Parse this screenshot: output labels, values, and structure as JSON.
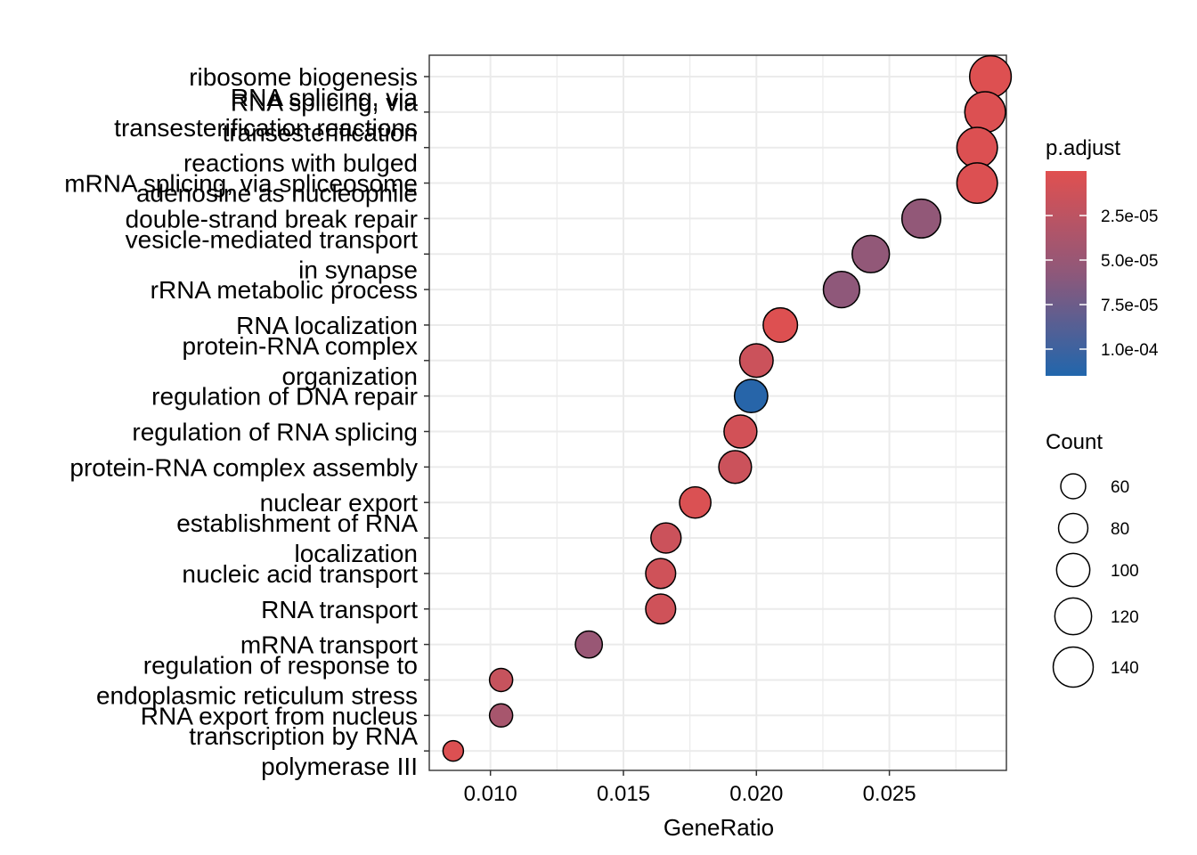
{
  "chart_data": {
    "type": "scatter",
    "xlabel": "GeneRatio",
    "ylabel": "",
    "xlim": [
      0.0077,
      0.0294
    ],
    "xticks": [
      0.01,
      0.015,
      0.02,
      0.025
    ],
    "xtick_labels": [
      "0.010",
      "0.015",
      "0.020",
      "0.025"
    ],
    "grid": true,
    "terms": [
      {
        "label": [
          "ribosome biogenesis"
        ],
        "gene_ratio": 0.0288,
        "count": 150,
        "p_adjust": 2e-06
      },
      {
        "label": [
          "RNA splicing, via",
          "transesterification reactions"
        ],
        "gene_ratio": 0.0286,
        "count": 144,
        "p_adjust": 3e-06
      },
      {
        "label": [
          "RNA splicing, via",
          "transesterification",
          "reactions with bulged",
          "adenosine as nucleophile"
        ],
        "gene_ratio": 0.0283,
        "count": 143,
        "p_adjust": 3e-06
      },
      {
        "label": [
          "mRNA splicing, via spliceosome"
        ],
        "gene_ratio": 0.0283,
        "count": 143,
        "p_adjust": 3e-06
      },
      {
        "label": [
          "double-strand break repair"
        ],
        "gene_ratio": 0.0262,
        "count": 132,
        "p_adjust": 5.5e-05
      },
      {
        "label": [
          "vesicle-mediated transport",
          "in synapse"
        ],
        "gene_ratio": 0.0243,
        "count": 123,
        "p_adjust": 5.5e-05
      },
      {
        "label": [
          "rRNA metabolic process"
        ],
        "gene_ratio": 0.0232,
        "count": 117,
        "p_adjust": 5.7e-05
      },
      {
        "label": [
          "RNA localization"
        ],
        "gene_ratio": 0.0209,
        "count": 106,
        "p_adjust": 2e-06
      },
      {
        "label": [
          "protein-RNA complex",
          "organization"
        ],
        "gene_ratio": 0.02,
        "count": 101,
        "p_adjust": 1.5e-05
      },
      {
        "label": [
          "regulation of DNA repair"
        ],
        "gene_ratio": 0.0198,
        "count": 100,
        "p_adjust": 0.000112
      },
      {
        "label": [
          "regulation of RNA splicing"
        ],
        "gene_ratio": 0.0194,
        "count": 98,
        "p_adjust": 1e-05
      },
      {
        "label": [
          "protein-RNA complex assembly"
        ],
        "gene_ratio": 0.0192,
        "count": 97,
        "p_adjust": 1.5e-05
      },
      {
        "label": [
          "nuclear export"
        ],
        "gene_ratio": 0.0177,
        "count": 90,
        "p_adjust": 4e-06
      },
      {
        "label": [
          "establishment of RNA",
          "localization"
        ],
        "gene_ratio": 0.0166,
        "count": 84,
        "p_adjust": 1.5e-05
      },
      {
        "label": [
          "nucleic acid transport"
        ],
        "gene_ratio": 0.0164,
        "count": 83,
        "p_adjust": 1.2e-05
      },
      {
        "label": [
          "RNA transport"
        ],
        "gene_ratio": 0.0164,
        "count": 83,
        "p_adjust": 1.2e-05
      },
      {
        "label": [
          "mRNA transport"
        ],
        "gene_ratio": 0.0137,
        "count": 69,
        "p_adjust": 5e-05
      },
      {
        "label": [
          "regulation of response to",
          "endoplasmic reticulum stress"
        ],
        "gene_ratio": 0.0104,
        "count": 53,
        "p_adjust": 1.8e-05
      },
      {
        "label": [
          "RNA export from nucleus"
        ],
        "gene_ratio": 0.0104,
        "count": 53,
        "p_adjust": 4e-05
      },
      {
        "label": [
          "transcription by RNA",
          "polymerase III"
        ],
        "gene_ratio": 0.0086,
        "count": 43,
        "p_adjust": 3e-06
      }
    ],
    "color_legend": {
      "title": "p.adjust",
      "low_color": "#E05050",
      "mid_color": "#8E587A",
      "high_color": "#2166AC",
      "min": 0.0,
      "max": 0.000115,
      "breaks": [
        2.5e-05,
        5e-05,
        7.5e-05,
        0.0001
      ],
      "break_labels": [
        "2.5e-05",
        "5.0e-05",
        "7.5e-05",
        "1.0e-04"
      ]
    },
    "size_legend": {
      "title": "Count",
      "breaks": [
        60,
        80,
        100,
        120,
        140
      ],
      "break_labels": [
        "60",
        "80",
        "100",
        "120",
        "140"
      ]
    }
  }
}
